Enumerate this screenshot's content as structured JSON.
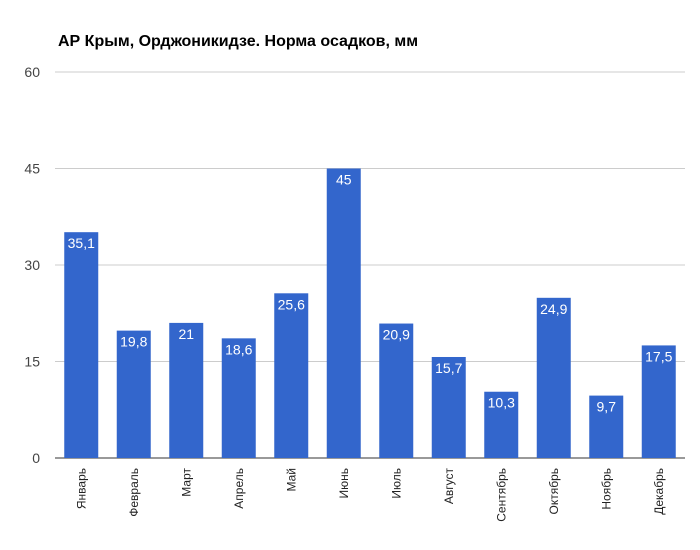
{
  "chart_data": {
    "type": "bar",
    "title": "АР Крым, Орджоникидзе. Норма осадков, мм",
    "xlabel": "",
    "ylabel": "",
    "categories": [
      "Январь",
      "Февраль",
      "Март",
      "Апрель",
      "Май",
      "Июнь",
      "Июль",
      "Август",
      "Сентябрь",
      "Октябрь",
      "Ноябрь",
      "Декабрь"
    ],
    "values": [
      35.1,
      19.8,
      21,
      18.6,
      25.6,
      45,
      20.9,
      15.7,
      10.3,
      24.9,
      9.7,
      17.5
    ],
    "value_labels": [
      "35,1",
      "19,8",
      "21",
      "18,6",
      "25,6",
      "45",
      "20,9",
      "15,7",
      "10,3",
      "24,9",
      "9,7",
      "17,5"
    ],
    "ylim": [
      0,
      60
    ],
    "yticks": [
      "0",
      "15",
      "30",
      "45",
      "60"
    ],
    "grid": true,
    "legend": "none",
    "bar_color": "#3366cc"
  }
}
